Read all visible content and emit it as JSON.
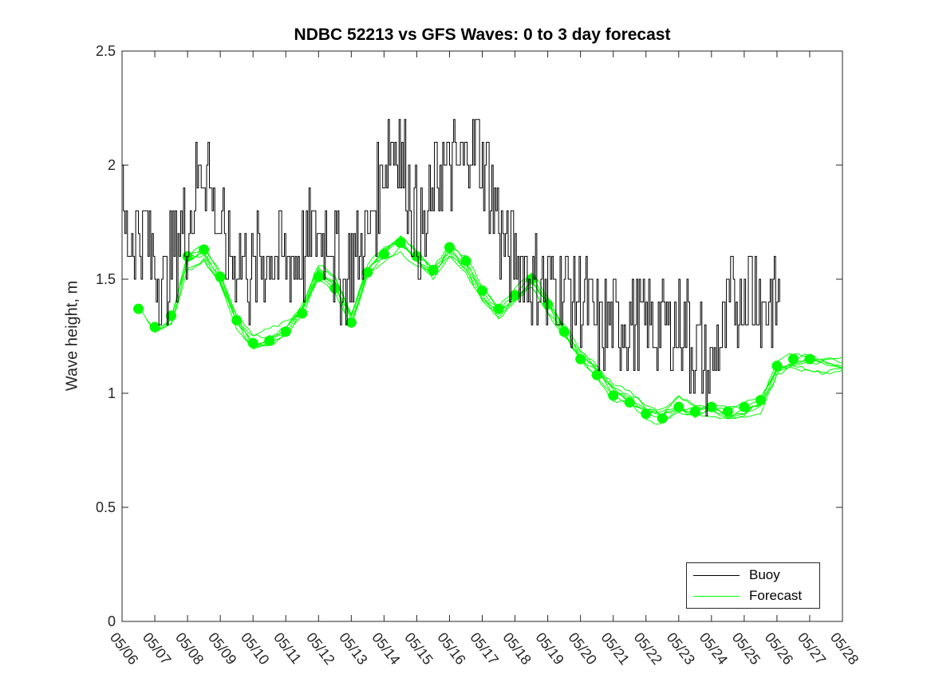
{
  "chart_data": {
    "type": "line",
    "title": "NDBC 52213 vs GFS Waves: 0 to 3 day forecast",
    "xlabel": "",
    "ylabel": "Wave height, m",
    "x_tick_labels": [
      "05/06",
      "05/07",
      "05/08",
      "05/09",
      "05/10",
      "05/11",
      "05/12",
      "05/13",
      "05/14",
      "05/15",
      "05/16",
      "05/17",
      "05/18",
      "05/19",
      "05/20",
      "05/21",
      "05/22",
      "05/23",
      "05/24",
      "05/25",
      "05/26",
      "05/27",
      "05/28"
    ],
    "y_ticks": [
      0,
      0.5,
      1,
      1.5,
      2,
      2.5
    ],
    "y_tick_labels": [
      "0",
      "0.5",
      "1",
      "1.5",
      "2",
      "2.5"
    ],
    "xlim_days": [
      0,
      22
    ],
    "ylim": [
      0,
      2.5
    ],
    "legend_position": "bottom-right",
    "grid": false,
    "series": [
      {
        "name": "Buoy",
        "color": "#000000",
        "points": [
          [
            0.0,
            1.75
          ],
          [
            0.2,
            1.65
          ],
          [
            0.4,
            1.75
          ],
          [
            0.6,
            1.7
          ],
          [
            0.8,
            1.65
          ],
          [
            1.0,
            1.6
          ],
          [
            1.15,
            1.45
          ],
          [
            1.3,
            1.5
          ],
          [
            1.5,
            1.6
          ],
          [
            1.7,
            1.65
          ],
          [
            1.9,
            1.7
          ],
          [
            2.1,
            1.8
          ],
          [
            2.3,
            1.9
          ],
          [
            2.5,
            2.05
          ],
          [
            2.7,
            1.9
          ],
          [
            2.9,
            1.75
          ],
          [
            3.1,
            1.65
          ],
          [
            3.3,
            1.6
          ],
          [
            3.5,
            1.55
          ],
          [
            3.7,
            1.6
          ],
          [
            3.9,
            1.5
          ],
          [
            4.1,
            1.55
          ],
          [
            4.3,
            1.55
          ],
          [
            4.5,
            1.6
          ],
          [
            4.7,
            1.55
          ],
          [
            4.9,
            1.6
          ],
          [
            5.1,
            1.6
          ],
          [
            5.3,
            1.65
          ],
          [
            5.5,
            1.6
          ],
          [
            5.7,
            1.65
          ],
          [
            5.9,
            1.75
          ],
          [
            6.1,
            1.7
          ],
          [
            6.3,
            1.75
          ],
          [
            6.5,
            1.6
          ],
          [
            6.7,
            1.5
          ],
          [
            6.9,
            1.55
          ],
          [
            7.1,
            1.6
          ],
          [
            7.3,
            1.65
          ],
          [
            7.5,
            1.7
          ],
          [
            7.7,
            1.8
          ],
          [
            7.9,
            1.95
          ],
          [
            8.1,
            2.05
          ],
          [
            8.3,
            2.1
          ],
          [
            8.5,
            2.05
          ],
          [
            8.7,
            1.95
          ],
          [
            8.9,
            1.8
          ],
          [
            9.1,
            1.7
          ],
          [
            9.3,
            1.75
          ],
          [
            9.5,
            1.85
          ],
          [
            9.7,
            1.95
          ],
          [
            9.9,
            2.0
          ],
          [
            10.1,
            2.05
          ],
          [
            10.3,
            2.0
          ],
          [
            10.5,
            2.05
          ],
          [
            10.7,
            2.1
          ],
          [
            10.9,
            2.05
          ],
          [
            11.1,
            2.0
          ],
          [
            11.3,
            1.85
          ],
          [
            11.5,
            1.75
          ],
          [
            11.7,
            1.65
          ],
          [
            11.9,
            1.6
          ],
          [
            12.1,
            1.55
          ],
          [
            12.3,
            1.55
          ],
          [
            12.5,
            1.5
          ],
          [
            12.7,
            1.5
          ],
          [
            12.9,
            1.45
          ],
          [
            13.1,
            1.45
          ],
          [
            13.3,
            1.5
          ],
          [
            13.5,
            1.45
          ],
          [
            13.7,
            1.45
          ],
          [
            13.9,
            1.4
          ],
          [
            14.1,
            1.4
          ],
          [
            14.3,
            1.35
          ],
          [
            14.5,
            1.3
          ],
          [
            14.7,
            1.3
          ],
          [
            14.9,
            1.25
          ],
          [
            15.1,
            1.3
          ],
          [
            15.3,
            1.3
          ],
          [
            15.5,
            1.25
          ],
          [
            15.7,
            1.3
          ],
          [
            15.9,
            1.25
          ],
          [
            16.1,
            1.3
          ],
          [
            16.3,
            1.25
          ],
          [
            16.5,
            1.25
          ],
          [
            16.7,
            1.3
          ],
          [
            16.9,
            1.25
          ],
          [
            17.1,
            1.25
          ],
          [
            17.3,
            1.25
          ],
          [
            17.5,
            1.2
          ],
          [
            17.7,
            1.15
          ],
          [
            17.9,
            1.1
          ],
          [
            18.1,
            1.15
          ],
          [
            18.3,
            1.25
          ],
          [
            18.5,
            1.35
          ],
          [
            18.7,
            1.4
          ],
          [
            18.9,
            1.45
          ],
          [
            19.1,
            1.45
          ],
          [
            19.3,
            1.45
          ],
          [
            19.5,
            1.45
          ],
          [
            19.7,
            1.4
          ],
          [
            19.9,
            1.35
          ],
          [
            20.1,
            1.35
          ]
        ]
      },
      {
        "name": "Forecast",
        "color": "#00ff00",
        "points": [
          [
            0.5,
            1.37
          ],
          [
            1.0,
            1.29
          ],
          [
            1.5,
            1.34
          ],
          [
            2.0,
            1.6
          ],
          [
            2.5,
            1.63
          ],
          [
            3.0,
            1.51
          ],
          [
            3.5,
            1.32
          ],
          [
            4.0,
            1.22
          ],
          [
            4.5,
            1.23
          ],
          [
            5.0,
            1.27
          ],
          [
            5.5,
            1.35
          ],
          [
            6.0,
            1.51
          ],
          [
            6.5,
            1.46
          ],
          [
            7.0,
            1.31
          ],
          [
            7.5,
            1.53
          ],
          [
            8.0,
            1.61
          ],
          [
            8.5,
            1.66
          ],
          [
            9.0,
            1.6
          ],
          [
            9.5,
            1.54
          ],
          [
            10.0,
            1.64
          ],
          [
            10.5,
            1.58
          ],
          [
            11.0,
            1.45
          ],
          [
            11.5,
            1.37
          ],
          [
            12.0,
            1.43
          ],
          [
            12.5,
            1.5
          ],
          [
            13.0,
            1.39
          ],
          [
            13.5,
            1.27
          ],
          [
            14.0,
            1.15
          ],
          [
            14.5,
            1.08
          ],
          [
            15.0,
            0.99
          ],
          [
            15.5,
            0.96
          ],
          [
            16.0,
            0.91
          ],
          [
            16.5,
            0.89
          ],
          [
            17.0,
            0.94
          ],
          [
            17.5,
            0.92
          ],
          [
            18.0,
            0.94
          ],
          [
            18.5,
            0.92
          ],
          [
            19.0,
            0.94
          ],
          [
            19.5,
            0.97
          ],
          [
            20.0,
            1.12
          ],
          [
            20.5,
            1.15
          ],
          [
            21.0,
            1.15
          ],
          [
            21.5,
            1.13
          ],
          [
            22.0,
            1.12
          ]
        ],
        "markers": [
          [
            0.5,
            1.37
          ],
          [
            1.0,
            1.29
          ],
          [
            1.5,
            1.34
          ],
          [
            2.0,
            1.6
          ],
          [
            2.5,
            1.63
          ],
          [
            3.0,
            1.51
          ],
          [
            3.5,
            1.32
          ],
          [
            4.0,
            1.22
          ],
          [
            4.5,
            1.23
          ],
          [
            5.0,
            1.27
          ],
          [
            5.5,
            1.35
          ],
          [
            6.0,
            1.51
          ],
          [
            6.5,
            1.46
          ],
          [
            7.0,
            1.31
          ],
          [
            7.5,
            1.53
          ],
          [
            8.0,
            1.61
          ],
          [
            8.5,
            1.66
          ],
          [
            9.0,
            1.6
          ],
          [
            9.5,
            1.54
          ],
          [
            10.0,
            1.64
          ],
          [
            10.5,
            1.58
          ],
          [
            11.0,
            1.45
          ],
          [
            11.5,
            1.37
          ],
          [
            12.0,
            1.43
          ],
          [
            12.5,
            1.5
          ],
          [
            13.0,
            1.39
          ],
          [
            13.5,
            1.27
          ],
          [
            14.0,
            1.15
          ],
          [
            14.5,
            1.08
          ],
          [
            15.0,
            0.99
          ],
          [
            15.5,
            0.96
          ],
          [
            16.0,
            0.91
          ],
          [
            16.5,
            0.89
          ],
          [
            17.0,
            0.94
          ],
          [
            17.5,
            0.92
          ],
          [
            18.0,
            0.94
          ],
          [
            18.5,
            0.92
          ],
          [
            19.0,
            0.94
          ],
          [
            19.5,
            0.97
          ],
          [
            20.0,
            1.12
          ],
          [
            20.5,
            1.15
          ],
          [
            21.0,
            1.15
          ]
        ]
      }
    ]
  }
}
